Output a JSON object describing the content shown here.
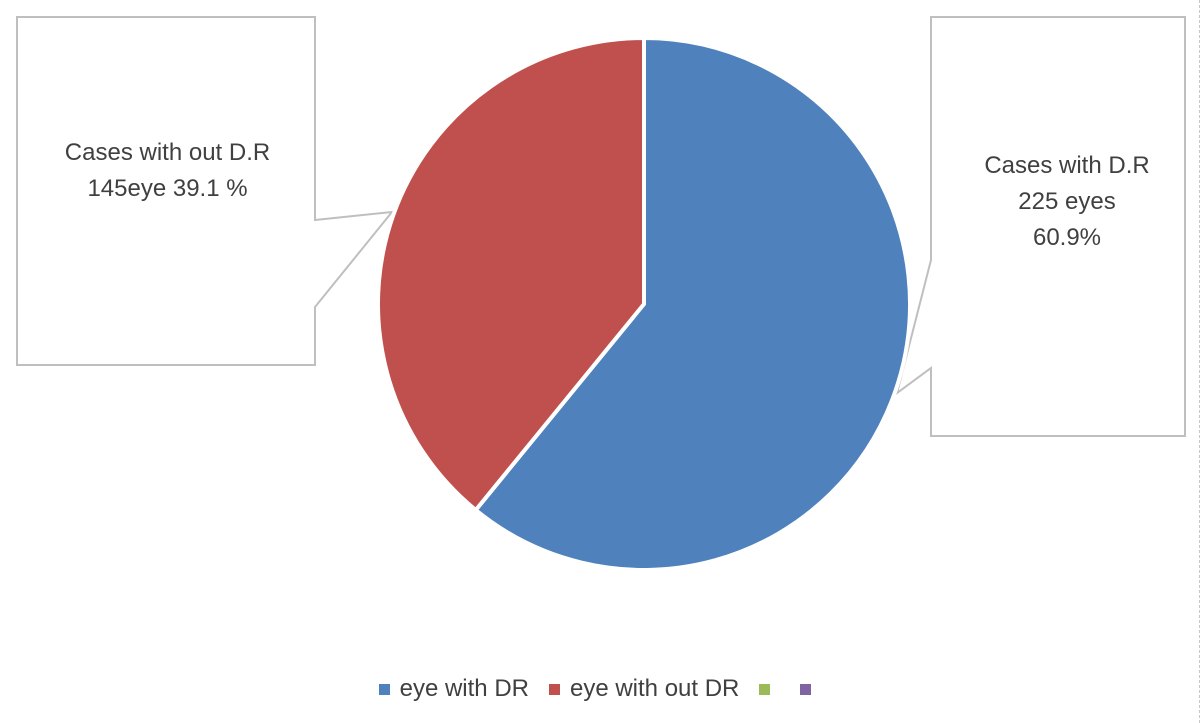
{
  "chart_data": {
    "type": "pie",
    "slices": [
      {
        "label": "eye with DR",
        "value": 60.9,
        "color": "#4F81BD"
      },
      {
        "label": "eye with out DR",
        "value": 39.1,
        "color": "#C0504D"
      }
    ],
    "annotations": {
      "with_dr": [
        "Cases with D.R",
        "225 eyes",
        "60.9%"
      ],
      "without_dr": [
        "Cases with out D.R",
        "145eye 39.1 %"
      ]
    },
    "legend": {
      "placement": "bottom",
      "entries": [
        {
          "label": "eye with DR",
          "color": "#4F81BD"
        },
        {
          "label": "eye with out DR",
          "color": "#C0504D"
        },
        {
          "label": "",
          "color": "#9BBB59"
        },
        {
          "label": "",
          "color": "#8064A2"
        }
      ]
    }
  }
}
